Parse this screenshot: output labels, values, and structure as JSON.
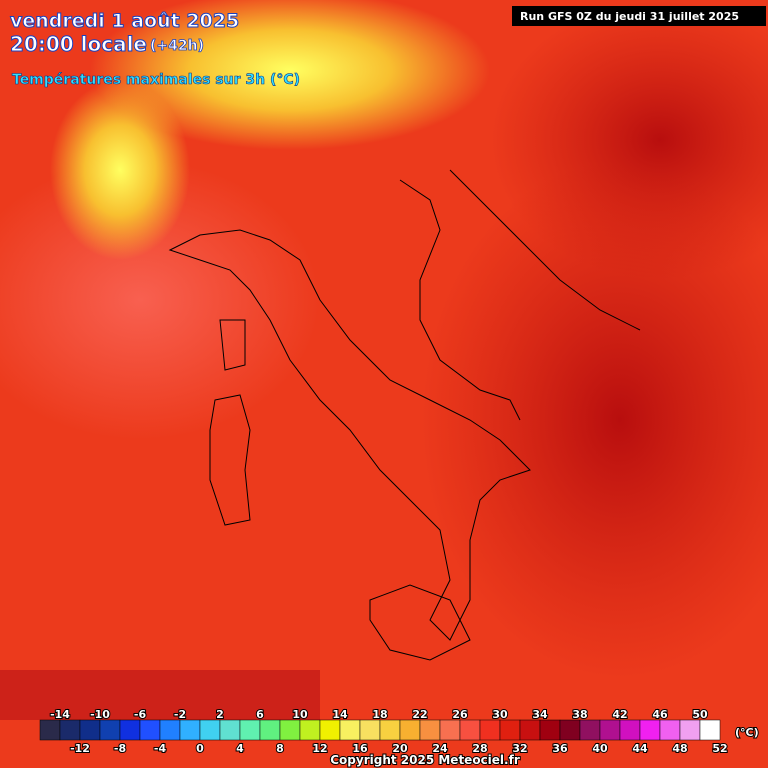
{
  "header": {
    "date": "vendredi 1 août 2025",
    "time": "20:00 locale",
    "lead": "(+42h)",
    "subtitle": "Températures maximales sur 3h (°C)",
    "run": "Run GFS 0Z du jeudi 31 juillet 2025"
  },
  "legend": {
    "xlim": [
      -16,
      52
    ],
    "ticks_top": [
      -14,
      -10,
      -6,
      -2,
      2,
      6,
      10,
      14,
      18,
      22,
      26,
      30,
      34,
      38,
      42,
      46,
      50
    ],
    "ticks_bottom": [
      -12,
      -8,
      -4,
      0,
      4,
      8,
      12,
      16,
      20,
      24,
      28,
      32,
      36,
      40,
      44,
      48,
      52
    ],
    "colors": [
      "#2a2a4a",
      "#1a2a6a",
      "#102e8a",
      "#1040b0",
      "#1030e0",
      "#2050ff",
      "#2080ff",
      "#30b0ff",
      "#40d0f0",
      "#60e0d0",
      "#60f0b0",
      "#60f080",
      "#80f040",
      "#c0f020",
      "#f0f000",
      "#f8f060",
      "#f8e060",
      "#f8d040",
      "#f8b030",
      "#f89040",
      "#f87050",
      "#f85040",
      "#f03020",
      "#e02010",
      "#c81010",
      "#a00010",
      "#800020",
      "#901060",
      "#b01090",
      "#d010c0",
      "#f020f0",
      "#f060f0",
      "#f0a0f0",
      "#ffffff"
    ],
    "unit": "(°C)"
  },
  "footer": {
    "copyright": "Copyright 2025 Meteociel.fr"
  }
}
